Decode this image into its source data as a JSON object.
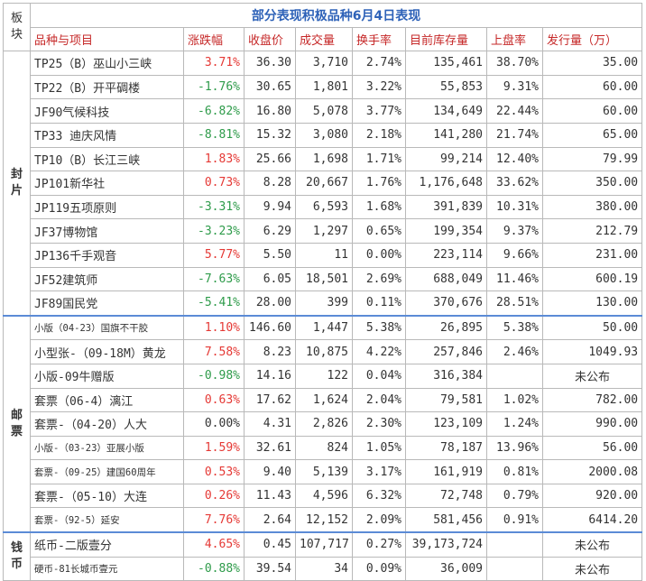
{
  "title": "部分表现积极品种6月4日表现",
  "plate_label": "板\n块",
  "headers": [
    "品种与项目",
    "涨跌幅",
    "收盘价",
    "成交量",
    "换手率",
    "目前库存量",
    "上盘率",
    "发行量（万）"
  ],
  "sections": [
    {
      "label": "封\n片",
      "rows": [
        {
          "name": "TP25（B）巫山小三峡",
          "change": "3.71%",
          "dir": "up",
          "close": "36.30",
          "volume": "3,710",
          "turnover": "2.74%",
          "stock": "135,461",
          "listing": "38.70%",
          "issue": "35.00"
        },
        {
          "name": "TP22（B）开平碉楼",
          "change": "-1.76%",
          "dir": "down",
          "close": "30.65",
          "volume": "1,801",
          "turnover": "3.22%",
          "stock": "55,853",
          "listing": "9.31%",
          "issue": "60.00"
        },
        {
          "name": "JF90气候科技",
          "change": "-6.82%",
          "dir": "down",
          "close": "16.80",
          "volume": "5,078",
          "turnover": "3.77%",
          "stock": "134,649",
          "listing": "22.44%",
          "issue": "60.00"
        },
        {
          "name": "TP33 迪庆风情",
          "change": "-8.81%",
          "dir": "down",
          "close": "15.32",
          "volume": "3,080",
          "turnover": "2.18%",
          "stock": "141,280",
          "listing": "21.74%",
          "issue": "65.00"
        },
        {
          "name": "TP10（B）长江三峡",
          "change": "1.83%",
          "dir": "up",
          "close": "25.66",
          "volume": "1,698",
          "turnover": "1.71%",
          "stock": "99,214",
          "listing": "12.40%",
          "issue": "79.99"
        },
        {
          "name": "JP101新华社",
          "change": "0.73%",
          "dir": "up",
          "close": "8.28",
          "volume": "20,667",
          "turnover": "1.76%",
          "stock": "1,176,648",
          "listing": "33.62%",
          "issue": "350.00"
        },
        {
          "name": "JP119五项原则",
          "change": "-3.31%",
          "dir": "down",
          "close": "9.94",
          "volume": "6,593",
          "turnover": "1.68%",
          "stock": "391,839",
          "listing": "10.31%",
          "issue": "380.00"
        },
        {
          "name": "JF37博物馆",
          "change": "-3.23%",
          "dir": "down",
          "close": "6.29",
          "volume": "1,297",
          "turnover": "0.65%",
          "stock": "199,354",
          "listing": "9.37%",
          "issue": "212.79"
        },
        {
          "name": "JP136千手观音",
          "change": "5.77%",
          "dir": "up",
          "close": "5.50",
          "volume": "11",
          "turnover": "0.00%",
          "stock": "223,114",
          "listing": "9.66%",
          "issue": "231.00"
        },
        {
          "name": "JF52建筑师",
          "change": "-7.63%",
          "dir": "down",
          "close": "6.05",
          "volume": "18,501",
          "turnover": "2.69%",
          "stock": "688,049",
          "listing": "11.46%",
          "issue": "600.19"
        },
        {
          "name": "JF89国民党",
          "change": "-5.41%",
          "dir": "down",
          "close": "28.00",
          "volume": "399",
          "turnover": "0.11%",
          "stock": "370,676",
          "listing": "28.51%",
          "issue": "130.00"
        }
      ]
    },
    {
      "label": "邮\n票",
      "rows": [
        {
          "name": "小版（04-23）国旗不干胶",
          "small": true,
          "change": "1.10%",
          "dir": "up",
          "close": "146.60",
          "volume": "1,447",
          "turnover": "5.38%",
          "stock": "26,895",
          "listing": "5.38%",
          "issue": "50.00"
        },
        {
          "name": "小型张-（09-18M）黄龙",
          "change": "7.58%",
          "dir": "up",
          "close": "8.23",
          "volume": "10,875",
          "turnover": "4.22%",
          "stock": "257,846",
          "listing": "2.46%",
          "issue": "1049.93"
        },
        {
          "name": "小版-09牛赠版",
          "change": "-0.98%",
          "dir": "down",
          "close": "14.16",
          "volume": "122",
          "turnover": "0.04%",
          "stock": "316,384",
          "listing": "",
          "issue": "未公布",
          "issue_none": true
        },
        {
          "name": "套票（06-4）漓江",
          "change": "0.63%",
          "dir": "up",
          "close": "17.62",
          "volume": "1,624",
          "turnover": "2.04%",
          "stock": "79,581",
          "listing": "1.02%",
          "issue": "782.00"
        },
        {
          "name": "套票-（04-20）人大",
          "change": "0.00%",
          "dir": "flat",
          "close": "4.31",
          "volume": "2,826",
          "turnover": "2.30%",
          "stock": "123,109",
          "listing": "1.24%",
          "issue": "990.00"
        },
        {
          "name": "小版-（03-23）亚展小版",
          "small": true,
          "change": "1.59%",
          "dir": "up",
          "close": "32.61",
          "volume": "824",
          "turnover": "1.05%",
          "stock": "78,187",
          "listing": "13.96%",
          "issue": "56.00"
        },
        {
          "name": "套票-（09-25）建国60周年",
          "small": true,
          "change": "0.53%",
          "dir": "up",
          "close": "9.40",
          "volume": "5,139",
          "turnover": "3.17%",
          "stock": "161,919",
          "listing": "0.81%",
          "issue": "2000.08"
        },
        {
          "name": "套票-（05-10）大连",
          "change": "0.26%",
          "dir": "up",
          "close": "11.43",
          "volume": "4,596",
          "turnover": "6.32%",
          "stock": "72,748",
          "listing": "0.79%",
          "issue": "920.00"
        },
        {
          "name": "套票-（92-5）延安",
          "small": true,
          "change": "7.76%",
          "dir": "up",
          "close": "2.64",
          "volume": "12,152",
          "turnover": "2.09%",
          "stock": "581,456",
          "listing": "0.91%",
          "issue": "6414.20"
        }
      ]
    },
    {
      "label": "钱\n币",
      "rows": [
        {
          "name": "纸币-二版壹分",
          "change": "4.65%",
          "dir": "up",
          "close": "0.45",
          "volume": "107,717",
          "turnover": "0.27%",
          "stock": "39,173,724",
          "listing": "",
          "issue": "未公布",
          "issue_none": true
        },
        {
          "name": "硬币-81长城币壹元",
          "small": true,
          "change": "-0.88%",
          "dir": "down",
          "close": "39.54",
          "volume": "34",
          "turnover": "0.09%",
          "stock": "36,009",
          "listing": "",
          "issue": "未公布",
          "issue_none": true
        }
      ]
    }
  ]
}
